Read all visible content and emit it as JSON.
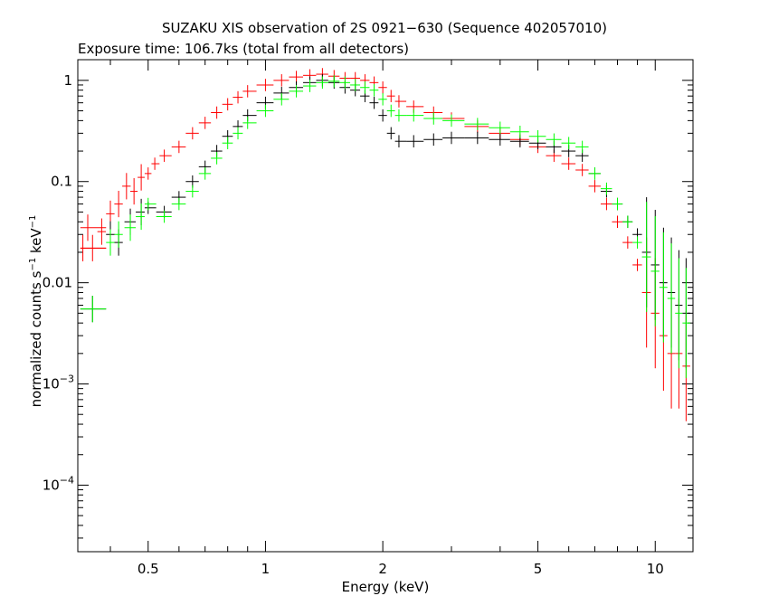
{
  "chart_data": {
    "type": "scatter",
    "title": "SUZAKU XIS observation of 2S 0921−630 (Sequence 402057010)",
    "subtitle": "Exposure time: 106.7ks (total from all detectors)",
    "xlabel": "Energy (keV)",
    "ylabel": {
      "prefix": "normalized counts s",
      "exp1": "−1",
      "mid": " keV",
      "exp2": "−1"
    },
    "xscale": "log",
    "yscale": "log",
    "xlim": [
      0.33,
      12.5
    ],
    "ylim": [
      2.2e-05,
      1.6
    ],
    "x_ticks": [
      {
        "value": 0.5,
        "label": "0.5"
      },
      {
        "value": 1,
        "label": "1"
      },
      {
        "value": 2,
        "label": "2"
      },
      {
        "value": 5,
        "label": "5"
      },
      {
        "value": 10,
        "label": "10"
      }
    ],
    "y_ticks": [
      {
        "value": 1,
        "label": "1",
        "exp": ""
      },
      {
        "value": 0.1,
        "label": "0.1",
        "exp": ""
      },
      {
        "value": 0.01,
        "label": "0.01",
        "exp": ""
      },
      {
        "value": 0.001,
        "label": "10",
        "exp": "−3"
      },
      {
        "value": 0.0001,
        "label": "10",
        "exp": "−4"
      }
    ],
    "grid": false,
    "legend": "none",
    "series": [
      {
        "color": "#ff0000",
        "points": [
          [
            0.34,
            0.022
          ],
          [
            0.35,
            0.035
          ],
          [
            0.36,
            0.022
          ],
          [
            0.38,
            0.032
          ],
          [
            0.4,
            0.048
          ],
          [
            0.42,
            0.06
          ],
          [
            0.44,
            0.09
          ],
          [
            0.46,
            0.08
          ],
          [
            0.48,
            0.11
          ],
          [
            0.5,
            0.12
          ],
          [
            0.52,
            0.15
          ],
          [
            0.55,
            0.18
          ],
          [
            0.6,
            0.22
          ],
          [
            0.65,
            0.3
          ],
          [
            0.7,
            0.38
          ],
          [
            0.75,
            0.48
          ],
          [
            0.8,
            0.58
          ],
          [
            0.85,
            0.68
          ],
          [
            0.9,
            0.78
          ],
          [
            1.0,
            0.9
          ],
          [
            1.1,
            1.0
          ],
          [
            1.2,
            1.08
          ],
          [
            1.3,
            1.12
          ],
          [
            1.4,
            1.15
          ],
          [
            1.5,
            1.1
          ],
          [
            1.6,
            1.05
          ],
          [
            1.7,
            1.05
          ],
          [
            1.8,
            1.0
          ],
          [
            1.9,
            0.95
          ],
          [
            2.0,
            0.85
          ],
          [
            2.1,
            0.7
          ],
          [
            2.2,
            0.62
          ],
          [
            2.4,
            0.55
          ],
          [
            2.7,
            0.48
          ],
          [
            3.0,
            0.42
          ],
          [
            3.5,
            0.35
          ],
          [
            4.0,
            0.3
          ],
          [
            4.5,
            0.26
          ],
          [
            5.0,
            0.22
          ],
          [
            5.5,
            0.18
          ],
          [
            6.0,
            0.15
          ],
          [
            6.5,
            0.13
          ],
          [
            7.0,
            0.09
          ],
          [
            7.5,
            0.06
          ],
          [
            8.0,
            0.04
          ],
          [
            8.5,
            0.025
          ],
          [
            9.0,
            0.015
          ],
          [
            9.5,
            0.008
          ],
          [
            10.0,
            0.005
          ],
          [
            10.5,
            0.003
          ],
          [
            11.0,
            0.002
          ],
          [
            11.5,
            0.002
          ],
          [
            12.0,
            0.0015
          ]
        ]
      },
      {
        "color": "#000000",
        "points": [
          [
            0.36,
            0.0055
          ],
          [
            0.4,
            0.03
          ],
          [
            0.42,
            0.025
          ],
          [
            0.45,
            0.04
          ],
          [
            0.48,
            0.05
          ],
          [
            0.5,
            0.055
          ],
          [
            0.55,
            0.05
          ],
          [
            0.6,
            0.07
          ],
          [
            0.65,
            0.1
          ],
          [
            0.7,
            0.14
          ],
          [
            0.75,
            0.2
          ],
          [
            0.8,
            0.28
          ],
          [
            0.85,
            0.35
          ],
          [
            0.9,
            0.45
          ],
          [
            1.0,
            0.6
          ],
          [
            1.1,
            0.75
          ],
          [
            1.2,
            0.85
          ],
          [
            1.3,
            0.95
          ],
          [
            1.4,
            1.0
          ],
          [
            1.5,
            0.95
          ],
          [
            1.6,
            0.85
          ],
          [
            1.7,
            0.8
          ],
          [
            1.8,
            0.7
          ],
          [
            1.9,
            0.6
          ],
          [
            2.0,
            0.45
          ],
          [
            2.1,
            0.3
          ],
          [
            2.2,
            0.25
          ],
          [
            2.4,
            0.25
          ],
          [
            2.7,
            0.26
          ],
          [
            3.0,
            0.27
          ],
          [
            3.5,
            0.27
          ],
          [
            4.0,
            0.26
          ],
          [
            4.5,
            0.25
          ],
          [
            5.0,
            0.24
          ],
          [
            5.5,
            0.22
          ],
          [
            6.0,
            0.2
          ],
          [
            6.5,
            0.18
          ],
          [
            7.0,
            0.12
          ],
          [
            7.5,
            0.08
          ],
          [
            8.0,
            0.06
          ],
          [
            8.5,
            0.04
          ],
          [
            9.0,
            0.03
          ],
          [
            9.5,
            0.02
          ],
          [
            10.0,
            0.015
          ],
          [
            10.5,
            0.01
          ],
          [
            11.0,
            0.008
          ],
          [
            11.5,
            0.006
          ],
          [
            12.0,
            0.005
          ]
        ]
      },
      {
        "color": "#00ff00",
        "points": [
          [
            0.36,
            0.0055
          ],
          [
            0.4,
            0.025
          ],
          [
            0.42,
            0.03
          ],
          [
            0.45,
            0.035
          ],
          [
            0.48,
            0.045
          ],
          [
            0.5,
            0.06
          ],
          [
            0.55,
            0.045
          ],
          [
            0.6,
            0.06
          ],
          [
            0.65,
            0.08
          ],
          [
            0.7,
            0.12
          ],
          [
            0.75,
            0.17
          ],
          [
            0.8,
            0.24
          ],
          [
            0.85,
            0.3
          ],
          [
            0.9,
            0.38
          ],
          [
            1.0,
            0.5
          ],
          [
            1.1,
            0.65
          ],
          [
            1.2,
            0.78
          ],
          [
            1.3,
            0.88
          ],
          [
            1.4,
            0.95
          ],
          [
            1.5,
            0.98
          ],
          [
            1.6,
            0.95
          ],
          [
            1.7,
            0.9
          ],
          [
            1.8,
            0.85
          ],
          [
            1.9,
            0.8
          ],
          [
            2.0,
            0.65
          ],
          [
            2.1,
            0.5
          ],
          [
            2.2,
            0.45
          ],
          [
            2.4,
            0.45
          ],
          [
            2.7,
            0.42
          ],
          [
            3.0,
            0.4
          ],
          [
            3.5,
            0.37
          ],
          [
            4.0,
            0.34
          ],
          [
            4.5,
            0.31
          ],
          [
            5.0,
            0.28
          ],
          [
            5.5,
            0.26
          ],
          [
            6.0,
            0.24
          ],
          [
            6.5,
            0.22
          ],
          [
            7.0,
            0.12
          ],
          [
            7.5,
            0.085
          ],
          [
            8.0,
            0.06
          ],
          [
            8.5,
            0.04
          ],
          [
            9.0,
            0.025
          ],
          [
            9.5,
            0.018
          ],
          [
            10.0,
            0.013
          ],
          [
            10.5,
            0.009
          ],
          [
            11.0,
            0.007
          ],
          [
            11.5,
            0.005
          ],
          [
            12.0,
            0.004
          ]
        ]
      }
    ]
  }
}
